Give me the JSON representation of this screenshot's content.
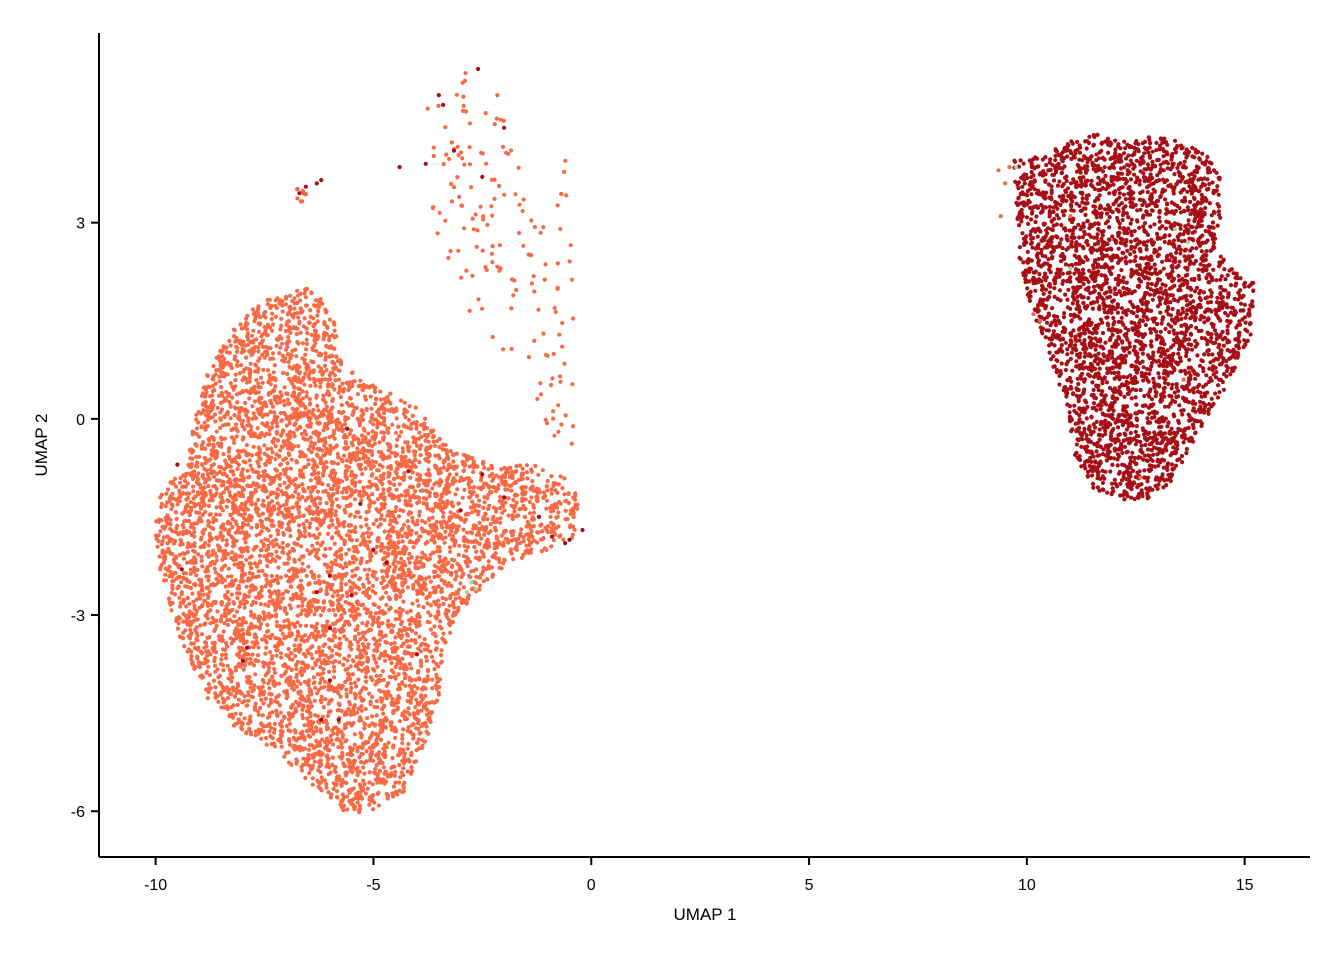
{
  "chart_data": {
    "type": "scatter",
    "title": "",
    "xlabel": "UMAP 1",
    "ylabel": "UMAP 2",
    "xlim": [
      -11.3,
      16.5
    ],
    "ylim": [
      -6.7,
      5.9
    ],
    "xticks": [
      -10,
      -5,
      0,
      5,
      10,
      15
    ],
    "xtick_labels": [
      "-10",
      "-5",
      "0",
      "5",
      "10",
      "15"
    ],
    "yticks": [
      -6,
      -3,
      0,
      3
    ],
    "ytick_labels": [
      "-6",
      "-3",
      "0",
      "3"
    ],
    "grid": false,
    "legend": "none",
    "colors": {
      "cluster_left": "#f76a45",
      "cluster_right": "#a50f15",
      "minor": "#a1d99b",
      "axis": "#000000"
    },
    "clusters": [
      {
        "color_key": "cluster_left",
        "approx_points": 6200,
        "extent_x": [
          -10.1,
          -0.1
        ],
        "extent_y": [
          -6.1,
          2.1
        ],
        "outline": [
          [
            -9.3,
            -0.8
          ],
          [
            -9.1,
            0.0
          ],
          [
            -8.8,
            0.7
          ],
          [
            -8.3,
            1.3
          ],
          [
            -7.6,
            1.8
          ],
          [
            -6.9,
            1.9
          ],
          [
            -6.6,
            2.05
          ],
          [
            -6.2,
            1.9
          ],
          [
            -5.9,
            1.5
          ],
          [
            -5.8,
            1.0
          ],
          [
            -5.3,
            0.6
          ],
          [
            -4.6,
            0.4
          ],
          [
            -4.0,
            0.2
          ],
          [
            -3.6,
            -0.2
          ],
          [
            -3.1,
            -0.5
          ],
          [
            -2.3,
            -0.7
          ],
          [
            -1.4,
            -0.7
          ],
          [
            -0.7,
            -0.8
          ],
          [
            -0.3,
            -1.2
          ],
          [
            -0.35,
            -1.8
          ],
          [
            -1.0,
            -2.0
          ],
          [
            -1.8,
            -2.2
          ],
          [
            -2.5,
            -2.6
          ],
          [
            -3.1,
            -3.0
          ],
          [
            -3.4,
            -3.6
          ],
          [
            -3.5,
            -4.3
          ],
          [
            -3.8,
            -5.0
          ],
          [
            -4.3,
            -5.7
          ],
          [
            -5.0,
            -6.05
          ],
          [
            -5.7,
            -6.0
          ],
          [
            -6.4,
            -5.6
          ],
          [
            -7.2,
            -5.1
          ],
          [
            -8.2,
            -4.7
          ],
          [
            -8.8,
            -4.3
          ],
          [
            -9.2,
            -3.7
          ],
          [
            -9.6,
            -3.1
          ],
          [
            -9.9,
            -2.3
          ],
          [
            -10.05,
            -1.5
          ],
          [
            -9.8,
            -1.0
          ]
        ]
      },
      {
        "color_key": "cluster_left",
        "approx_points": 160,
        "extent_x": [
          -4.0,
          -0.4
        ],
        "extent_y": [
          -0.5,
          5.4
        ],
        "outline": [
          [
            -3.9,
            5.0
          ],
          [
            -3.6,
            5.35
          ],
          [
            -3.0,
            5.35
          ],
          [
            -2.3,
            5.1
          ],
          [
            -2.0,
            4.8
          ],
          [
            -1.8,
            4.4
          ],
          [
            -1.6,
            3.6
          ],
          [
            -1.2,
            3.2
          ],
          [
            -0.9,
            3.6
          ],
          [
            -0.6,
            4.1
          ],
          [
            -0.4,
            2.5
          ],
          [
            -0.35,
            1.0
          ],
          [
            -0.4,
            -0.4
          ],
          [
            -0.9,
            -0.3
          ],
          [
            -1.6,
            0.6
          ],
          [
            -2.4,
            1.2
          ],
          [
            -3.2,
            2.0
          ],
          [
            -3.6,
            2.8
          ],
          [
            -3.8,
            3.8
          ]
        ]
      },
      {
        "color_key": "cluster_left",
        "approx_points": 10,
        "extent_x": [
          -6.8,
          -6.5
        ],
        "extent_y": [
          3.3,
          3.55
        ],
        "outline": [
          [
            -6.8,
            3.5
          ],
          [
            -6.7,
            3.55
          ],
          [
            -6.55,
            3.5
          ],
          [
            -6.5,
            3.35
          ],
          [
            -6.65,
            3.3
          ],
          [
            -6.8,
            3.38
          ]
        ]
      },
      {
        "color_key": "cluster_right",
        "approx_points": 3400,
        "extent_x": [
          9.6,
          15.3
        ],
        "extent_y": [
          -1.25,
          4.35
        ],
        "outline": [
          [
            9.7,
            3.95
          ],
          [
            10.4,
            4.05
          ],
          [
            11.0,
            4.25
          ],
          [
            11.6,
            4.35
          ],
          [
            12.2,
            4.25
          ],
          [
            12.8,
            4.35
          ],
          [
            13.5,
            4.25
          ],
          [
            14.1,
            4.05
          ],
          [
            14.45,
            3.7
          ],
          [
            14.5,
            3.1
          ],
          [
            14.3,
            2.6
          ],
          [
            14.8,
            2.3
          ],
          [
            15.2,
            2.1
          ],
          [
            15.3,
            1.7
          ],
          [
            15.1,
            1.2
          ],
          [
            14.6,
            0.5
          ],
          [
            14.1,
            0.0
          ],
          [
            13.7,
            -0.5
          ],
          [
            13.3,
            -1.0
          ],
          [
            12.7,
            -1.25
          ],
          [
            12.1,
            -1.25
          ],
          [
            11.5,
            -1.05
          ],
          [
            11.1,
            -0.55
          ],
          [
            10.9,
            0.2
          ],
          [
            10.5,
            1.0
          ],
          [
            10.05,
            1.8
          ],
          [
            9.8,
            2.5
          ],
          [
            9.75,
            3.3
          ]
        ]
      }
    ],
    "stray_points": {
      "cluster_right": [
        [
          -6.7,
          3.45
        ],
        [
          -6.55,
          3.55
        ],
        [
          -6.3,
          3.6
        ],
        [
          -6.2,
          3.65
        ],
        [
          -4.4,
          3.85
        ],
        [
          -3.8,
          3.9
        ],
        [
          -3.5,
          4.95
        ],
        [
          -3.4,
          4.8
        ],
        [
          -3.15,
          4.1
        ],
        [
          -2.6,
          5.35
        ],
        [
          -2.5,
          3.7
        ],
        [
          -2.0,
          4.45
        ],
        [
          -9.5,
          -0.7
        ],
        [
          -9.4,
          -2.3
        ],
        [
          -8.0,
          -3.7
        ],
        [
          -6.0,
          -2.4
        ],
        [
          -5.3,
          -1.3
        ],
        [
          -5.6,
          -0.15
        ],
        [
          -5.0,
          -2.0
        ],
        [
          -5.5,
          -2.7
        ],
        [
          -6.3,
          -2.65
        ],
        [
          -6.0,
          -3.2
        ],
        [
          -4.2,
          -0.8
        ],
        [
          -4.7,
          -2.2
        ],
        [
          -3.0,
          -1.4
        ],
        [
          -2.5,
          -0.85
        ],
        [
          -2.0,
          -1.2
        ],
        [
          -1.2,
          -1.5
        ],
        [
          -0.9,
          -1.8
        ],
        [
          -0.6,
          -1.9
        ],
        [
          -0.5,
          -1.85
        ],
        [
          -0.2,
          -1.7
        ],
        [
          -6.0,
          -4.0
        ],
        [
          -6.2,
          -4.6
        ],
        [
          -5.8,
          -4.6
        ],
        [
          -7.9,
          -3.5
        ],
        [
          -4.0,
          -3.6
        ]
      ],
      "cluster_left": [
        [
          9.35,
          3.8
        ],
        [
          9.4,
          3.1
        ],
        [
          9.6,
          3.85
        ],
        [
          9.5,
          3.6
        ],
        [
          10.15,
          1.6
        ],
        [
          10.3,
          1.5
        ],
        [
          11.0,
          3.1
        ],
        [
          13.6,
          0.6
        ],
        [
          12.6,
          -0.9
        ]
      ],
      "minor": [
        [
          -2.75,
          -2.5
        ],
        [
          -2.65,
          -2.6
        ],
        [
          -2.85,
          -2.65
        ],
        [
          9.75,
          3.85
        ],
        [
          13.7,
          2.7
        ],
        [
          13.4,
          2.9
        ],
        [
          11.0,
          2.3
        ]
      ]
    }
  }
}
